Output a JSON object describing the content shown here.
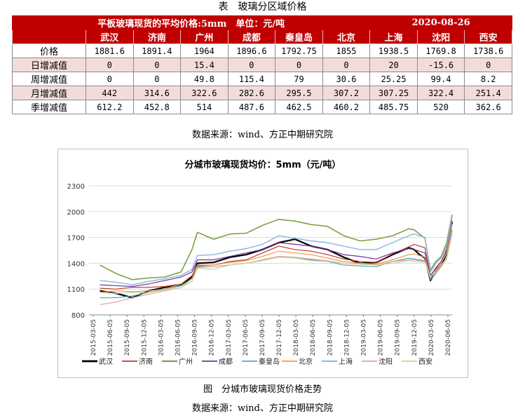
{
  "table_caption": "表　玻璃分区域价格",
  "table": {
    "title": "平板玻璃现货的平均价格:5mm　单位：元/吨",
    "date": "2020-08-26",
    "columns": [
      "武汉",
      "济南",
      "广州",
      "成都",
      "秦皇岛",
      "北京",
      "上海",
      "沈阳",
      "西安"
    ],
    "rows": [
      {
        "label": "价格",
        "values": [
          "1881.6",
          "1891.4",
          "1964",
          "1896.6",
          "1792.75",
          "1855",
          "1938.5",
          "1769.8",
          "1738.6"
        ]
      },
      {
        "label": "日增减值",
        "values": [
          "0",
          "0",
          "15.4",
          "0",
          "0",
          "0",
          "20",
          "-15.6",
          "0"
        ]
      },
      {
        "label": "周增减值",
        "values": [
          "0",
          "0",
          "49.8",
          "115.4",
          "79",
          "30.6",
          "25.25",
          "99.4",
          "8.2"
        ]
      },
      {
        "label": "月增减值",
        "values": [
          "442",
          "314.6",
          "322.6",
          "282.6",
          "295.5",
          "307.2",
          "307.25",
          "322.4",
          "251.4"
        ]
      },
      {
        "label": "季增减值",
        "values": [
          "612.2",
          "452.8",
          "514",
          "487.6",
          "462.5",
          "460.2",
          "485.75",
          "520",
          "362.6"
        ]
      }
    ]
  },
  "table_source": "数据来源：wind、方正中期研究院",
  "figure_caption": "图　分城市玻璃现货价格走势",
  "figure_source": "数据来源：wind、方正中期研究院",
  "chart_data": {
    "type": "line",
    "title": "分城市玻璃现货均价：5mm（元/吨）",
    "ylim": [
      800,
      2300
    ],
    "yticks": [
      800,
      1100,
      1400,
      1700,
      2000,
      2300
    ],
    "grid": true,
    "legend_position": "bottom",
    "xlabels": [
      "2015-03-05",
      "2015-06-05",
      "2015-09-05",
      "2015-12-05",
      "2016-03-05",
      "2016-06-05",
      "2016-09-05",
      "2016-12-05",
      "2017-03-05",
      "2017-06-05",
      "2017-09-05",
      "2017-12-05",
      "2018-03-05",
      "2018-06-05",
      "2018-09-05",
      "2018-12-05",
      "2019-03-05",
      "2019-06-05",
      "2019-09-05",
      "2019-12-05",
      "2020-03-05",
      "2020-06-05"
    ],
    "x": [
      "2015-03",
      "2015-06",
      "2015-09",
      "2015-12",
      "2016-03",
      "2016-06",
      "2016-08",
      "2016-09",
      "2016-12",
      "2017-03",
      "2017-06",
      "2017-09",
      "2017-12",
      "2018-03",
      "2018-06",
      "2018-09",
      "2018-12",
      "2019-03",
      "2019-06",
      "2019-09",
      "2019-12",
      "2020-01",
      "2020-02",
      "2020-03",
      "2020-04",
      "2020-05",
      "2020-06",
      "2020-07",
      "2020-08"
    ],
    "series": [
      {
        "name": "武汉",
        "color": "#000000",
        "width": 2.2,
        "values": [
          1080,
          1050,
          1000,
          1080,
          1120,
          1150,
          1240,
          1400,
          1410,
          1470,
          1500,
          1560,
          1640,
          1680,
          1600,
          1560,
          1470,
          1400,
          1410,
          1500,
          1580,
          1560,
          1500,
          1460,
          1200,
          1310,
          1370,
          1520,
          1880
        ]
      },
      {
        "name": "济南",
        "color": "#c0392b",
        "width": 1.2,
        "values": [
          1110,
          1100,
          1120,
          1120,
          1130,
          1160,
          1260,
          1370,
          1380,
          1420,
          1440,
          1520,
          1600,
          1560,
          1540,
          1500,
          1450,
          1420,
          1410,
          1510,
          1590,
          1620,
          1600,
          1580,
          1250,
          1350,
          1420,
          1560,
          1890
        ]
      },
      {
        "name": "广州",
        "color": "#7ba23f",
        "width": 1.6,
        "values": [
          1380,
          1280,
          1210,
          1230,
          1240,
          1300,
          1560,
          1760,
          1680,
          1740,
          1750,
          1840,
          1910,
          1890,
          1850,
          1830,
          1720,
          1660,
          1680,
          1720,
          1800,
          1790,
          1740,
          1690,
          1320,
          1420,
          1480,
          1640,
          1964
        ]
      },
      {
        "name": "成都",
        "color": "#7030a0",
        "width": 1.2,
        "values": [
          1150,
          1140,
          1130,
          1160,
          1200,
          1240,
          1300,
          1440,
          1440,
          1480,
          1520,
          1560,
          1640,
          1620,
          1600,
          1560,
          1500,
          1480,
          1450,
          1520,
          1570,
          1560,
          1540,
          1520,
          1260,
          1340,
          1420,
          1560,
          1896
        ]
      },
      {
        "name": "秦皇岛",
        "color": "#4bacc6",
        "width": 1.2,
        "values": [
          1000,
          1000,
          1020,
          1060,
          1100,
          1140,
          1220,
          1360,
          1360,
          1380,
          1400,
          1440,
          1480,
          1470,
          1440,
          1420,
          1380,
          1370,
          1360,
          1420,
          1460,
          1450,
          1440,
          1430,
          1210,
          1280,
          1360,
          1470,
          1792
        ]
      },
      {
        "name": "北京",
        "color": "#f79646",
        "width": 1.2,
        "values": [
          1060,
          1080,
          1070,
          1080,
          1100,
          1160,
          1260,
          1380,
          1380,
          1410,
          1430,
          1480,
          1540,
          1520,
          1500,
          1460,
          1420,
          1400,
          1390,
          1440,
          1500,
          1510,
          1490,
          1470,
          1230,
          1320,
          1400,
          1520,
          1855
        ]
      },
      {
        "name": "上海",
        "color": "#8db4e2",
        "width": 1.4,
        "values": [
          1200,
          1180,
          1150,
          1190,
          1220,
          1260,
          1330,
          1490,
          1500,
          1540,
          1570,
          1620,
          1720,
          1690,
          1660,
          1640,
          1600,
          1560,
          1560,
          1640,
          1720,
          1740,
          1720,
          1700,
          1300,
          1400,
          1460,
          1600,
          1938
        ]
      },
      {
        "name": "沈阳",
        "color": "#e6a0a0",
        "width": 1.2,
        "values": [
          920,
          950,
          1000,
          1040,
          1080,
          1120,
          1220,
          1350,
          1360,
          1380,
          1400,
          1440,
          1480,
          1470,
          1450,
          1430,
          1400,
          1390,
          1380,
          1420,
          1440,
          1440,
          1430,
          1420,
          1250,
          1300,
          1380,
          1460,
          1770
        ]
      },
      {
        "name": "西安",
        "color": "#c4d79b",
        "width": 1.2,
        "values": [
          1060,
          1050,
          1060,
          1060,
          1090,
          1120,
          1190,
          1340,
          1330,
          1380,
          1400,
          1430,
          1470,
          1460,
          1430,
          1420,
          1400,
          1390,
          1380,
          1400,
          1430,
          1420,
          1420,
          1410,
          1240,
          1290,
          1360,
          1450,
          1738
        ]
      }
    ]
  }
}
